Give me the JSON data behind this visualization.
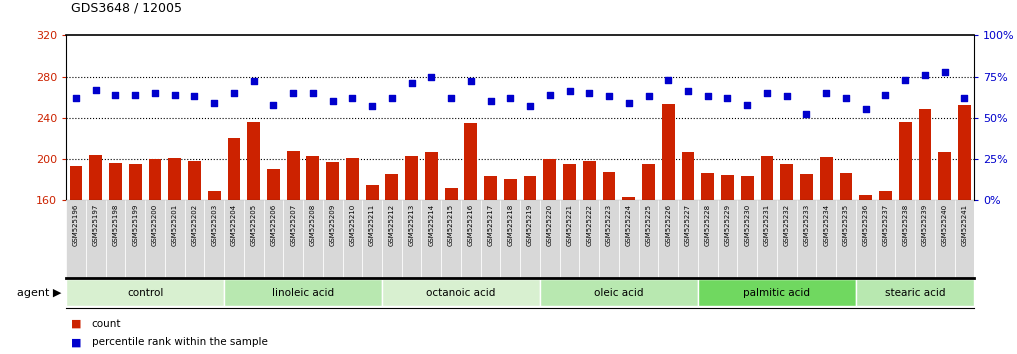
{
  "title": "GDS3648 / 12005",
  "samples": [
    "GSM525196",
    "GSM525197",
    "GSM525198",
    "GSM525199",
    "GSM525200",
    "GSM525201",
    "GSM525202",
    "GSM525203",
    "GSM525204",
    "GSM525205",
    "GSM525206",
    "GSM525207",
    "GSM525208",
    "GSM525209",
    "GSM525210",
    "GSM525211",
    "GSM525212",
    "GSM525213",
    "GSM525214",
    "GSM525215",
    "GSM525216",
    "GSM525217",
    "GSM525218",
    "GSM525219",
    "GSM525220",
    "GSM525221",
    "GSM525222",
    "GSM525223",
    "GSM525224",
    "GSM525225",
    "GSM525226",
    "GSM525227",
    "GSM525228",
    "GSM525229",
    "GSM525230",
    "GSM525231",
    "GSM525232",
    "GSM525233",
    "GSM525234",
    "GSM525235",
    "GSM525236",
    "GSM525237",
    "GSM525238",
    "GSM525239",
    "GSM525240",
    "GSM525241"
  ],
  "counts": [
    193,
    204,
    196,
    195,
    200,
    201,
    198,
    169,
    220,
    236,
    190,
    208,
    203,
    197,
    201,
    175,
    185,
    203,
    207,
    172,
    235,
    183,
    180,
    183,
    200,
    195,
    198,
    187,
    163,
    195,
    253,
    207,
    186,
    184,
    183,
    203,
    195,
    185,
    202,
    186,
    165,
    169,
    236,
    248,
    207,
    252
  ],
  "percentiles": [
    62,
    67,
    64,
    64,
    65,
    64,
    63,
    59,
    65,
    72,
    58,
    65,
    65,
    60,
    62,
    57,
    62,
    71,
    75,
    62,
    72,
    60,
    62,
    57,
    64,
    66,
    65,
    63,
    59,
    63,
    73,
    66,
    63,
    62,
    58,
    65,
    63,
    52,
    65,
    62,
    55,
    64,
    73,
    76,
    78,
    62
  ],
  "groups": [
    {
      "label": "control",
      "start": 0,
      "end": 7,
      "color": "#d8f0d0"
    },
    {
      "label": "linoleic acid",
      "start": 8,
      "end": 15,
      "color": "#b8e8b0"
    },
    {
      "label": "octanoic acid",
      "start": 16,
      "end": 23,
      "color": "#d8f0d0"
    },
    {
      "label": "oleic acid",
      "start": 24,
      "end": 31,
      "color": "#b8e8b0"
    },
    {
      "label": "palmitic acid",
      "start": 32,
      "end": 39,
      "color": "#70d860"
    },
    {
      "label": "stearic acid",
      "start": 40,
      "end": 45,
      "color": "#b8e8b0"
    }
  ],
  "bar_color": "#cc2200",
  "dot_color": "#0000cc",
  "left_ylim": [
    160,
    320
  ],
  "left_yticks": [
    160,
    200,
    240,
    280,
    320
  ],
  "right_ylim": [
    0,
    100
  ],
  "right_yticks": [
    0,
    25,
    50,
    75,
    100
  ],
  "right_yticklabels": [
    "0%",
    "25%",
    "50%",
    "75%",
    "100%"
  ],
  "bg_color": "#ffffff",
  "tick_bg_color": "#d8d8d8",
  "grid_lines": [
    200,
    240,
    280
  ],
  "agent_label": "agent",
  "legend1_color": "#cc2200",
  "legend1_text": "count",
  "legend2_color": "#0000cc",
  "legend2_text": "percentile rank within the sample"
}
